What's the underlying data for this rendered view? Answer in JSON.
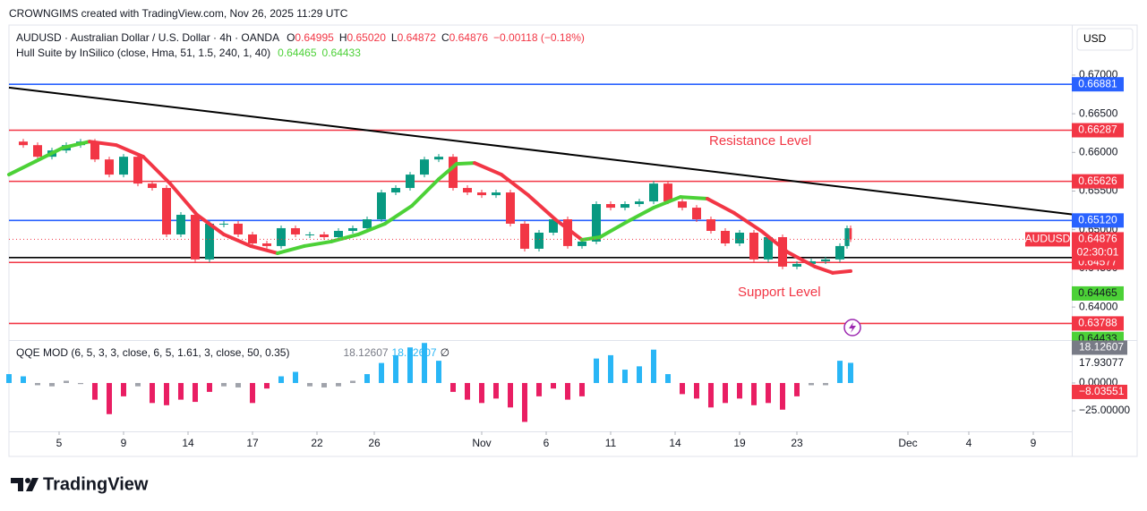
{
  "header": {
    "attribution": "CROWNGIMS created with TradingView.com, Nov 26, 2025 11:29 UTC"
  },
  "currency": "USD",
  "legend": {
    "symbol": "AUDUSD · Australian Dollar / U.S. Dollar · 4h · OANDA",
    "ohlc": [
      {
        "key": "O",
        "value": "0.64995"
      },
      {
        "key": "H",
        "value": "0.65020"
      },
      {
        "key": "L",
        "value": "0.64872"
      },
      {
        "key": "C",
        "value": "0.64876"
      }
    ],
    "change": "−0.00118 (−0.18%)",
    "indicator": "Hull Suite by InSilico (close, Hma, 51, 1.5, 240, 1, 40)",
    "indicator_values": [
      "0.64465",
      "0.64433"
    ]
  },
  "annotations": {
    "resistance": "Resistance Level",
    "support": "Support Level"
  },
  "chart_data": [
    {
      "type": "candlestick",
      "xlim": [
        0,
        297
      ],
      "xticks": [
        {
          "value": 14,
          "label": "5"
        },
        {
          "value": 32,
          "label": "9"
        },
        {
          "value": 50,
          "label": "14"
        },
        {
          "value": 68,
          "label": "17"
        },
        {
          "value": 86,
          "label": "22"
        },
        {
          "value": 102,
          "label": "26"
        },
        {
          "value": 132,
          "label": "Nov"
        },
        {
          "value": 150,
          "label": "6"
        },
        {
          "value": 168,
          "label": "11"
        },
        {
          "value": 186,
          "label": "14"
        },
        {
          "value": 204,
          "label": "19"
        },
        {
          "value": 220,
          "label": "23"
        },
        {
          "value": 251,
          "label": "Dec"
        },
        {
          "value": 268,
          "label": "4"
        },
        {
          "value": 286,
          "label": "9"
        }
      ],
      "ylim": [
        0.63596,
        0.67624
      ],
      "yticks": [
        {
          "value": 0.67,
          "label": "0.67000"
        },
        {
          "value": 0.665,
          "label": "0.66500"
        },
        {
          "value": 0.66,
          "label": "0.66000"
        },
        {
          "value": 0.655,
          "label": "0.65500"
        },
        {
          "value": 0.65,
          "label": "0.65000"
        },
        {
          "value": 0.645,
          "label": "0.64500"
        },
        {
          "value": 0.64,
          "label": "0.64000"
        }
      ],
      "x": [
        0,
        4,
        8,
        12,
        16,
        20,
        24,
        28,
        32,
        36,
        40,
        44,
        48,
        52,
        56,
        60,
        64,
        68,
        72,
        76,
        80,
        84,
        88,
        92,
        96,
        100,
        104,
        108,
        112,
        116,
        120,
        124,
        128,
        132,
        136,
        140,
        144,
        148,
        152,
        156,
        160,
        164,
        168,
        172,
        176,
        180,
        184,
        188,
        192,
        196,
        200,
        204,
        208,
        212,
        216,
        220,
        224,
        228,
        232,
        234,
        235
      ],
      "values": [
        0.6614,
        0.66094,
        0.65944,
        0.66025,
        0.66094,
        0.6614,
        0.65909,
        0.65713,
        0.65944,
        0.65597,
        0.6554,
        0.64939,
        0.65193,
        0.64616,
        0.65078,
        0.65078,
        0.64939,
        0.64823,
        0.64789,
        0.6502,
        0.64939,
        0.64939,
        0.64904,
        0.64985,
        0.6502,
        0.65135,
        0.65482,
        0.6554,
        0.65713,
        0.65909,
        0.65944,
        0.6554,
        0.65482,
        0.65447,
        0.65482,
        0.65078,
        0.64754,
        0.64962,
        0.65135,
        0.64789,
        0.64847,
        0.65332,
        0.65285,
        0.65332,
        0.65366,
        0.65597,
        0.65366,
        0.65285,
        0.65135,
        0.64985,
        0.64823,
        0.64962,
        0.64616,
        0.64904,
        0.64523,
        0.64558,
        0.64592,
        0.64616,
        0.64789,
        0.6502,
        0.64876
      ],
      "up_color": "#089981",
      "down_color": "#f23645",
      "overlay": {
        "type": "line",
        "x": [
          0,
          7.5,
          15,
          22.5,
          30,
          37.5,
          45,
          52.5,
          60,
          67.5,
          75,
          82.5,
          90,
          97.5,
          105,
          112.5,
          120,
          125,
          130,
          137.5,
          145,
          152.5,
          160,
          165,
          172.5,
          180,
          187.5,
          195,
          202.5,
          210,
          217.5,
          225,
          230,
          235
        ],
        "values": [
          0.65713,
          0.65886,
          0.66059,
          0.6614,
          0.66094,
          0.65944,
          0.65597,
          0.65193,
          0.64939,
          0.64789,
          0.64696,
          0.64789,
          0.64847,
          0.64939,
          0.65078,
          0.65309,
          0.65655,
          0.65851,
          0.65863,
          0.65713,
          0.65447,
          0.65135,
          0.6487,
          0.64904,
          0.65101,
          0.65285,
          0.65424,
          0.65401,
          0.65216,
          0.64985,
          0.64708,
          0.64523,
          0.64442,
          0.64465
        ],
        "colors": [
          "#4cd137",
          "#4cd137",
          "#4cd137",
          "#f23645",
          "#f23645",
          "#f23645",
          "#f23645",
          "#f23645",
          "#f23645",
          "#f23645",
          "#4cd137",
          "#4cd137",
          "#4cd137",
          "#4cd137",
          "#4cd137",
          "#4cd137",
          "#4cd137",
          "#4cd137",
          "#f23645",
          "#f23645",
          "#f23645",
          "#f23645",
          "#4cd137",
          "#4cd137",
          "#4cd137",
          "#4cd137",
          "#4cd137",
          "#f23645",
          "#f23645",
          "#f23645",
          "#f23645",
          "#f23645",
          "#f23645",
          "#4cd137"
        ]
      },
      "levels": [
        {
          "value": 0.66881,
          "label": "0.66881",
          "color": "#2962ff"
        },
        {
          "value": 0.66287,
          "label": "0.66287",
          "color": "#f23645"
        },
        {
          "value": 0.65626,
          "label": "0.65626",
          "color": "#f23645"
        },
        {
          "value": 0.6512,
          "label": "0.65120",
          "color": "#2962ff"
        },
        {
          "value": 0.64577,
          "label": "0.64577",
          "color": "#f23645"
        },
        {
          "value": 0.63788,
          "label": "0.63788",
          "color": "#f23645"
        },
        {
          "value": 0.6464,
          "color": "#000000"
        }
      ],
      "trendline": {
        "x": [
          0,
          297
        ],
        "values": [
          0.66838,
          0.65198
        ],
        "color": "#000000"
      },
      "price_tag": {
        "symbol": "AUDUSD",
        "value": {
          "value": 0.64876,
          "label": "0.64876"
        },
        "countdown": "02:30:01",
        "color": "#f23645"
      },
      "overlay_tags": [
        {
          "value": 0.64465,
          "label": "0.64465"
        },
        {
          "value": 0.64433,
          "label": "0.64433"
        }
      ]
    },
    {
      "type": "bar",
      "title": "QQE MOD (6, 5, 3, 3, close, 6, 5, 1.61, 3, close, 50, 0.35)",
      "legend_values": [
        {
          "value": 18.12607,
          "label": "18.12607",
          "color": "#787b86"
        },
        {
          "value": 18.12607,
          "label": "18.12607",
          "color": "#29b6f6"
        }
      ],
      "legend_na": "∅",
      "xlim": [
        0,
        297
      ],
      "ylim": [
        -43.5,
        37
      ],
      "yticks": [
        {
          "value": 0,
          "label": "0.00000"
        },
        {
          "value": -25,
          "label": "−25.00000"
        }
      ],
      "x": [
        0,
        4,
        8,
        12,
        16,
        20,
        24,
        28,
        32,
        36,
        40,
        44,
        48,
        52,
        56,
        60,
        64,
        68,
        72,
        76,
        80,
        84,
        88,
        92,
        96,
        100,
        104,
        108,
        112,
        116,
        120,
        124,
        128,
        132,
        136,
        140,
        144,
        148,
        152,
        156,
        160,
        164,
        168,
        172,
        176,
        180,
        184,
        188,
        192,
        196,
        200,
        204,
        208,
        212,
        216,
        220,
        224,
        228,
        232,
        235
      ],
      "values": [
        8,
        6,
        -2,
        -3,
        2,
        -1,
        -15,
        -28,
        -12,
        -3,
        -18,
        -20,
        -15,
        -17,
        -8,
        -3,
        -4,
        -18,
        -5,
        6,
        10,
        -3,
        -4,
        -3,
        2,
        8,
        18,
        25,
        32,
        36,
        20,
        -8,
        -15,
        -18,
        -14,
        -22,
        -35,
        -12,
        -5,
        -15,
        -12,
        22,
        25,
        12,
        15,
        30,
        8,
        -10,
        -14,
        -22,
        -18,
        -14,
        -20,
        -18,
        -24,
        -12,
        -2,
        -2,
        20,
        18.12607
      ],
      "colors": {
        "positive": "#29b6f6",
        "negative": "#e91e63",
        "neutral": "#a0a3ab"
      },
      "tags": [
        {
          "value": 17.93077,
          "label": "17.93077"
        },
        {
          "value": 18.12607,
          "label": "18.12607",
          "color": "#787b86"
        },
        {
          "value": -8.03551,
          "label": "−8.03551",
          "color": "#f23645"
        }
      ]
    }
  ],
  "footer": {
    "logo": "TradingView"
  }
}
